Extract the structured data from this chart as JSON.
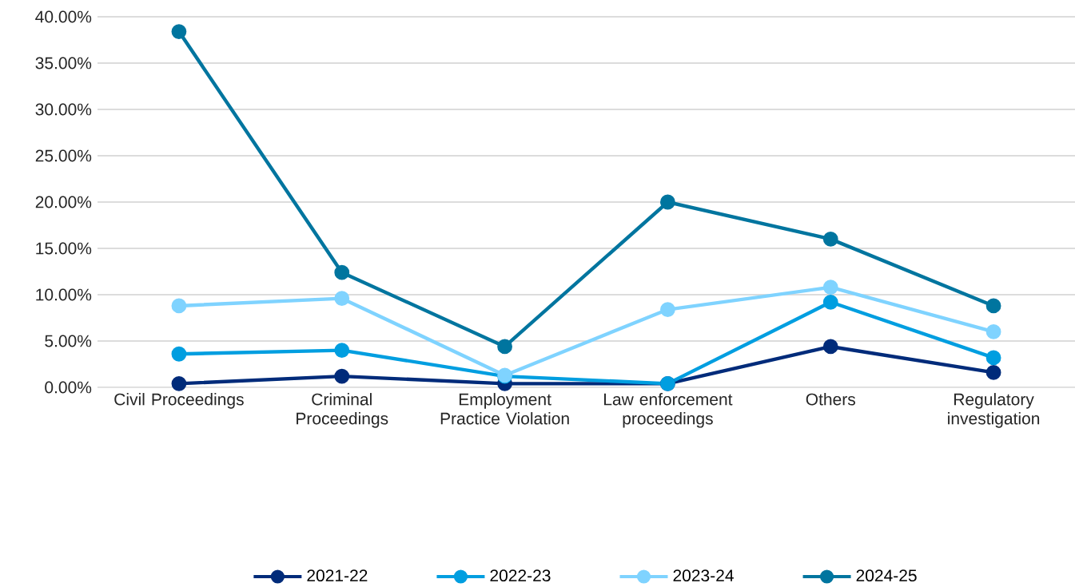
{
  "chart_data": {
    "type": "line",
    "categories": [
      "Civil Proceedings",
      "Criminal Proceedings",
      "Employment Practice Violation",
      "Law enforcement proceedings",
      "Others",
      "Regulatory investigation"
    ],
    "series": [
      {
        "name": "2021-22",
        "color": "#002b7a",
        "values": [
          0.4,
          1.2,
          0.4,
          0.4,
          4.4,
          1.6
        ]
      },
      {
        "name": "2022-23",
        "color": "#009ee0",
        "values": [
          3.6,
          4.0,
          1.2,
          0.4,
          9.2,
          3.2
        ]
      },
      {
        "name": "2023-24",
        "color": "#7fd3ff",
        "values": [
          8.8,
          9.6,
          1.3,
          8.4,
          10.8,
          6.0
        ]
      },
      {
        "name": "2024-25",
        "color": "#00759f",
        "values": [
          38.4,
          12.4,
          4.4,
          20.0,
          16.0,
          8.8
        ]
      }
    ],
    "ylim": [
      0,
      40
    ],
    "yticks": [
      {
        "value": 0,
        "label": "0.00%"
      },
      {
        "value": 5,
        "label": "5.00%"
      },
      {
        "value": 10,
        "label": "10.00%"
      },
      {
        "value": 15,
        "label": "15.00%"
      },
      {
        "value": 20,
        "label": "20.00%"
      },
      {
        "value": 25,
        "label": "25.00%"
      },
      {
        "value": 30,
        "label": "30.00%"
      },
      {
        "value": 35,
        "label": "35.00%"
      },
      {
        "value": 40,
        "label": "40.00%"
      }
    ],
    "grid": "y",
    "legend": "bottom",
    "marker": "circle",
    "line_style": "solid"
  }
}
